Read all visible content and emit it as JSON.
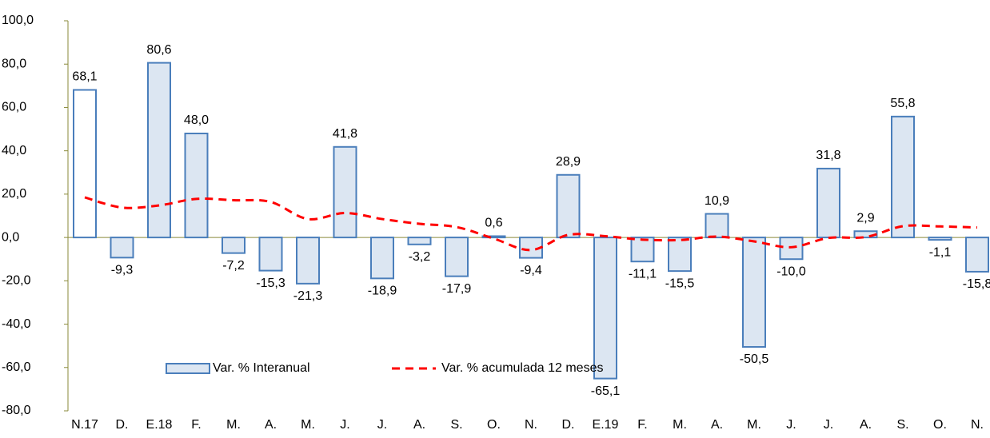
{
  "chart_data": {
    "type": "bar",
    "categories": [
      "N.17",
      "D.",
      "E.18",
      "F.",
      "M.",
      "A.",
      "M.",
      "J.",
      "J.",
      "A.",
      "S.",
      "O.",
      "N.",
      "D.",
      "E.19",
      "F.",
      "M.",
      "A.",
      "M.",
      "J.",
      "J.",
      "A.",
      "S.",
      "O.",
      "N."
    ],
    "series": [
      {
        "name": "Var. % Interanual",
        "type": "bar",
        "color": "#dce6f2",
        "stroke": "#4a7ebb",
        "fills": [
          "#ffffff",
          "#dce6f2",
          "#dce6f2",
          "#dce6f2",
          "#dce6f2",
          "#dce6f2",
          "#dce6f2",
          "#dce6f2",
          "#dce6f2",
          "#dce6f2",
          "#dce6f2",
          "#dce6f2",
          "#dce6f2",
          "#dce6f2",
          "#dce6f2",
          "#dce6f2",
          "#dce6f2",
          "#dce6f2",
          "#dce6f2",
          "#dce6f2",
          "#dce6f2",
          "#dce6f2",
          "#dce6f2",
          "#dce6f2",
          "#dce6f2"
        ],
        "values": [
          68.1,
          -9.3,
          80.6,
          48.0,
          -7.2,
          -15.3,
          -21.3,
          41.8,
          -18.9,
          -3.2,
          -17.9,
          0.6,
          -9.4,
          28.9,
          -65.1,
          -11.1,
          -15.5,
          10.9,
          -50.5,
          -10.0,
          31.8,
          2.9,
          55.8,
          -1.1,
          -15.8
        ],
        "value_labels": [
          "68,1",
          "-9,3",
          "80,6",
          "48,0",
          "-7,2",
          "-15,3",
          "-21,3",
          "41,8",
          "-18,9",
          "-3,2",
          "-17,9",
          "0,6",
          "-9,4",
          "28,9",
          "-65,1",
          "-11,1",
          "-15,5",
          "10,9",
          "-50,5",
          "-10,0",
          "31,8",
          "2,9",
          "55,8",
          "-1,1",
          "-15,8"
        ]
      },
      {
        "name": "Var. % acumulada 12 meses",
        "type": "line",
        "color": "#ff0000",
        "values": [
          18.5,
          13.8,
          14.8,
          17.8,
          17.2,
          16.4,
          8.5,
          11.3,
          8.5,
          6.3,
          4.8,
          -0.5,
          -5.8,
          1.2,
          0.6,
          -1.0,
          -1.2,
          0.4,
          -1.8,
          -4.5,
          -0.2,
          0.2,
          5.2,
          5.1,
          4.6
        ]
      }
    ],
    "ylim": [
      -80,
      100
    ],
    "yticks": [
      {
        "value": -80,
        "label": "-80,0"
      },
      {
        "value": -60,
        "label": "-60,0"
      },
      {
        "value": -40,
        "label": "-40,0"
      },
      {
        "value": -20,
        "label": "-20,0"
      },
      {
        "value": 0,
        "label": "0,0"
      },
      {
        "value": 20,
        "label": "20,0"
      },
      {
        "value": 40,
        "label": "40,0"
      },
      {
        "value": 60,
        "label": "60,0"
      },
      {
        "value": 80,
        "label": "80,0"
      },
      {
        "value": 100,
        "label": "100,0"
      }
    ],
    "grid": false,
    "legend": "bottom"
  }
}
